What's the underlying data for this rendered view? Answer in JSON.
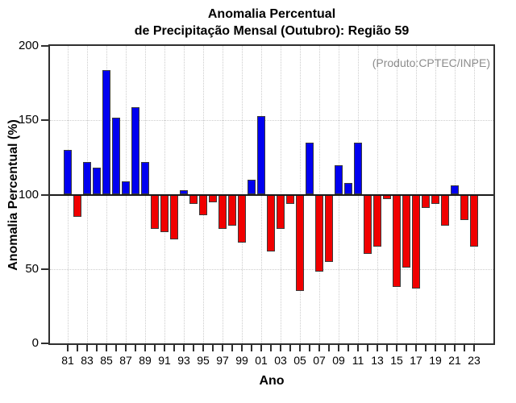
{
  "title": {
    "line1": "Anomalia Percentual",
    "line2": "de Precipitação Mensal (Outubro): Região 59"
  },
  "annotation": "(Produto:CPTEC/INPE)",
  "axes": {
    "y_label": "Anomalia Percentual (%)",
    "x_label": "Ano",
    "y_tick_labels": [
      "200",
      "150",
      "100",
      "50",
      "0"
    ],
    "x_tick_labels": [
      "81",
      "83",
      "85",
      "87",
      "89",
      "91",
      "93",
      "95",
      "97",
      "99",
      "01",
      "03",
      "05",
      "07",
      "09",
      "11",
      "13",
      "15",
      "17",
      "19",
      "21",
      "23"
    ]
  },
  "colors": {
    "positive_bar": "#0000f0",
    "negative_bar": "#f00000",
    "bar_border": "#3b3b3b",
    "baseline": "#1a1a1a",
    "frame": "#2f2f2f",
    "grid": "#cccccc",
    "annotation_text": "#8c8c8c"
  },
  "chart_data": {
    "type": "bar",
    "title": "Anomalia Percentual de Precipitação Mensal (Outubro): Região 59",
    "xlabel": "Ano",
    "ylabel": "Anomalia Percentual (%)",
    "ylim": [
      0,
      200
    ],
    "y_gridlines": [
      50,
      150
    ],
    "baseline": 100,
    "grid": "dotted, vertical every 2 years at labeled years",
    "color_rule": {
      "above_baseline": "blue",
      "below_baseline": "red"
    },
    "categories": [
      1981,
      1982,
      1983,
      1984,
      1985,
      1986,
      1987,
      1988,
      1989,
      1990,
      1991,
      1992,
      1993,
      1994,
      1995,
      1996,
      1997,
      1998,
      1999,
      2000,
      2001,
      2002,
      2003,
      2004,
      2005,
      2006,
      2007,
      2008,
      2009,
      2010,
      2011,
      2012,
      2013,
      2014,
      2015,
      2016,
      2017,
      2018,
      2019,
      2020,
      2021,
      2022,
      2023
    ],
    "values": [
      130,
      85,
      122,
      118,
      184,
      152,
      109,
      159,
      122,
      77,
      75,
      70,
      103,
      94,
      86,
      95,
      77,
      79,
      68,
      110,
      153,
      62,
      77,
      94,
      35,
      135,
      48,
      55,
      120,
      108,
      135,
      60,
      65,
      97,
      38,
      51,
      37,
      91,
      94,
      79,
      106,
      83,
      65
    ]
  }
}
